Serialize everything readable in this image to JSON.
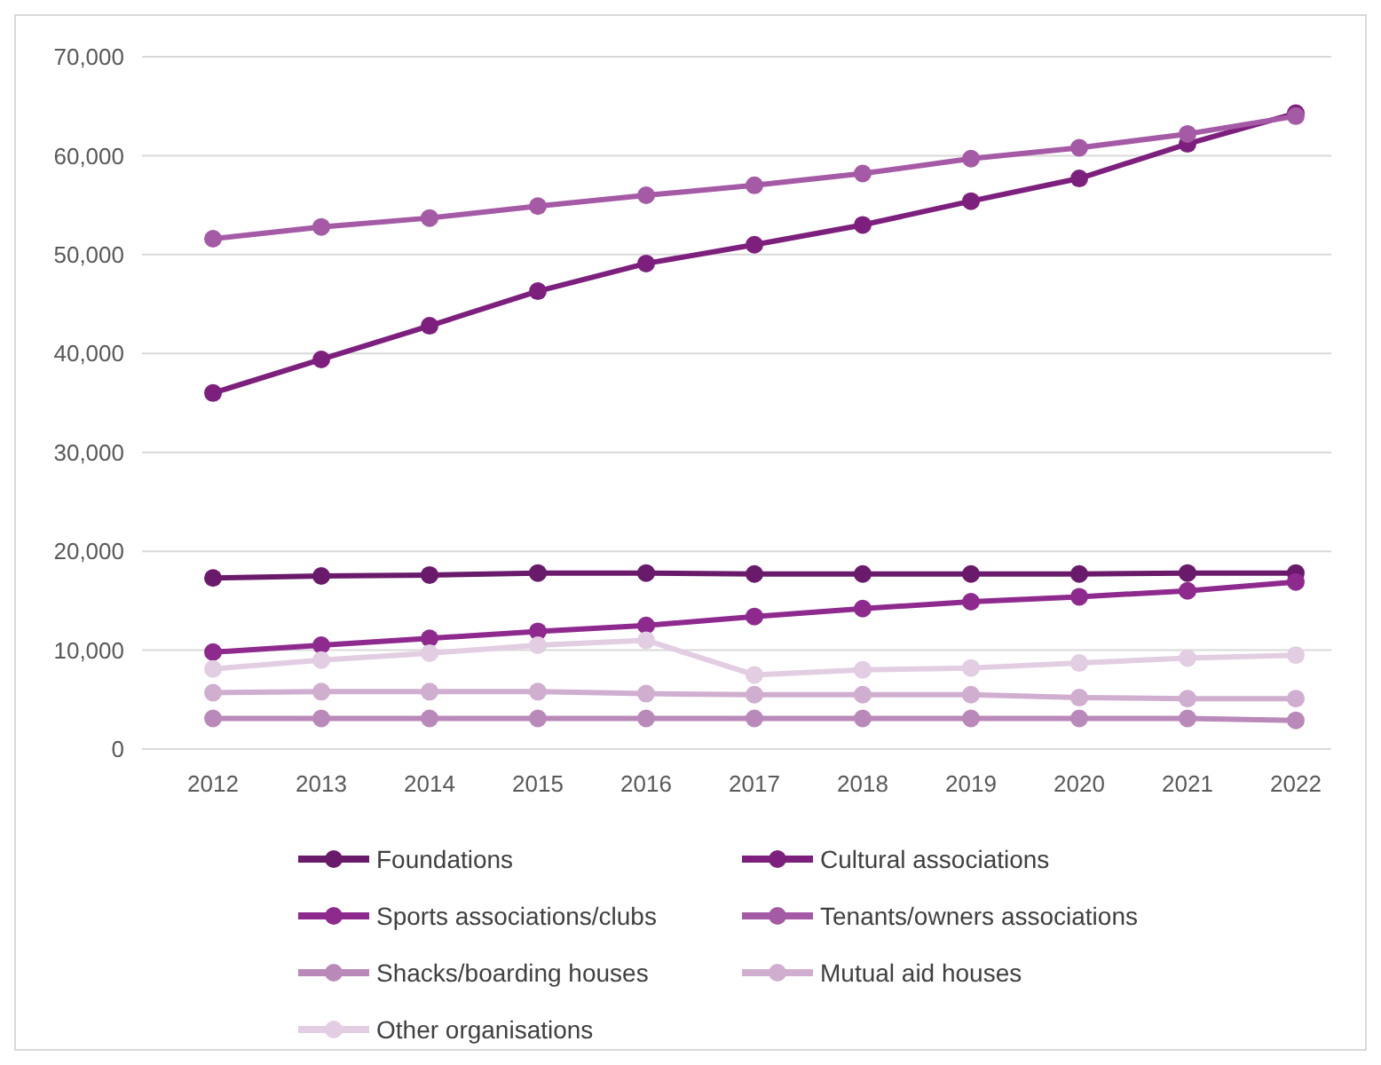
{
  "chart_data": {
    "type": "line",
    "categories": [
      "2012",
      "2013",
      "2014",
      "2015",
      "2016",
      "2017",
      "2018",
      "2019",
      "2020",
      "2021",
      "2022"
    ],
    "ylim": [
      0,
      70000
    ],
    "yticks": [
      {
        "value": 0,
        "label": "0"
      },
      {
        "value": 10000,
        "label": "10,000"
      },
      {
        "value": 20000,
        "label": "20,000"
      },
      {
        "value": 30000,
        "label": "30,000"
      },
      {
        "value": 40000,
        "label": "40,000"
      },
      {
        "value": 50000,
        "label": "50,000"
      },
      {
        "value": 60000,
        "label": "60,000"
      },
      {
        "value": 70000,
        "label": "70,000"
      }
    ],
    "grid": "y",
    "legend": "bottom",
    "marker": "circle",
    "line_style": "solid",
    "series": [
      {
        "name": "Foundations",
        "color": "#6a1a6a",
        "values": [
          17300,
          17500,
          17600,
          17800,
          17800,
          17700,
          17700,
          17700,
          17700,
          17800,
          17800
        ]
      },
      {
        "name": "Cultural associations",
        "color": "#7d1f7d",
        "values": [
          36000,
          39400,
          42800,
          46300,
          49100,
          51000,
          53000,
          55400,
          57700,
          61200,
          64300
        ]
      },
      {
        "name": "Sports associations/clubs",
        "color": "#8e2a8e",
        "values": [
          9800,
          10500,
          11200,
          11900,
          12500,
          13400,
          14200,
          14900,
          15400,
          16000,
          16900
        ]
      },
      {
        "name": "Tenants/owners associations",
        "color": "#a55aa5",
        "values": [
          51600,
          52800,
          53700,
          54900,
          56000,
          57000,
          58200,
          59700,
          60800,
          62200,
          64000
        ]
      },
      {
        "name": "Shacks/boarding houses",
        "color": "#b98ab9",
        "values": [
          3100,
          3100,
          3100,
          3100,
          3100,
          3100,
          3100,
          3100,
          3100,
          3100,
          2900
        ]
      },
      {
        "name": "Mutual aid houses",
        "color": "#d0aed0",
        "values": [
          5700,
          5800,
          5800,
          5800,
          5600,
          5500,
          5500,
          5500,
          5200,
          5100,
          5100
        ]
      },
      {
        "name": "Other organisations",
        "color": "#e2cde2",
        "values": [
          8100,
          9000,
          9700,
          10500,
          11000,
          7500,
          8000,
          8200,
          8700,
          9200,
          9500
        ]
      }
    ]
  }
}
